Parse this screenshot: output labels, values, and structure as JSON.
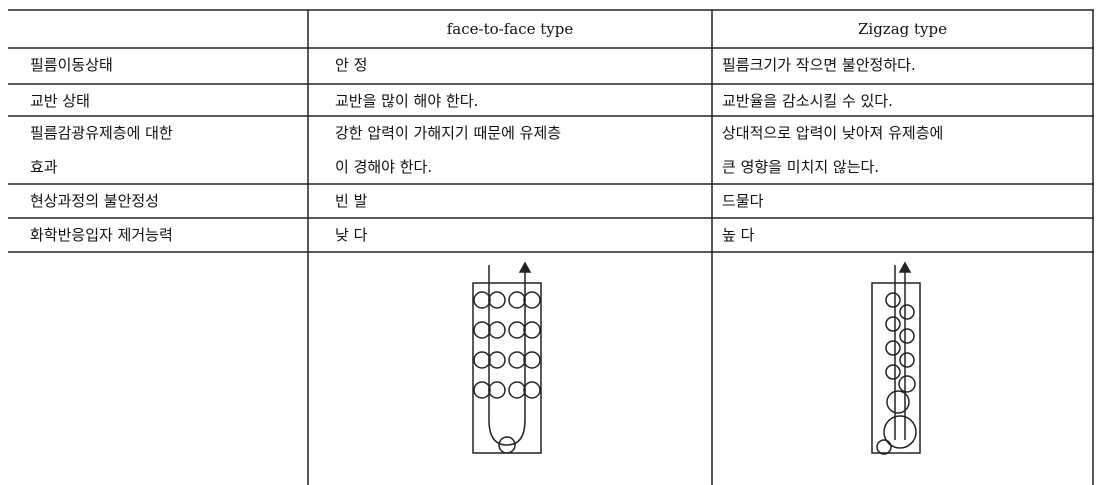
{
  "table": {
    "header": [
      "",
      "face-to-face type",
      "Zigzag type"
    ],
    "rows": [
      [
        [
          "필름이동상태"
        ],
        [
          "안  정"
        ],
        [
          "필름크기가 작으면 불안정하다."
        ]
      ],
      [
        [
          "교반 상태"
        ],
        [
          "교반을 많이 해야 한다."
        ],
        [
          "교반율을 감소시킬 수 있다."
        ]
      ],
      [
        [
          "필름감광유제층에 대한",
          "효과"
        ],
        [
          "강한 압력이 가해지기 때문에 유제층",
          "이 경해야 한다."
        ],
        [
          "상대적으로 압력이 낮아져 유제층에",
          "큰 영향을 미치지 않는다."
        ]
      ],
      [
        [
          "현상과정의 불안정성"
        ],
        [
          "빈  발"
        ],
        [
          "드물다"
        ]
      ],
      [
        [
          "화학반응입자 제거능력"
        ],
        [
          "낮  다"
        ],
        [
          "높  다"
        ]
      ]
    ]
  }
}
